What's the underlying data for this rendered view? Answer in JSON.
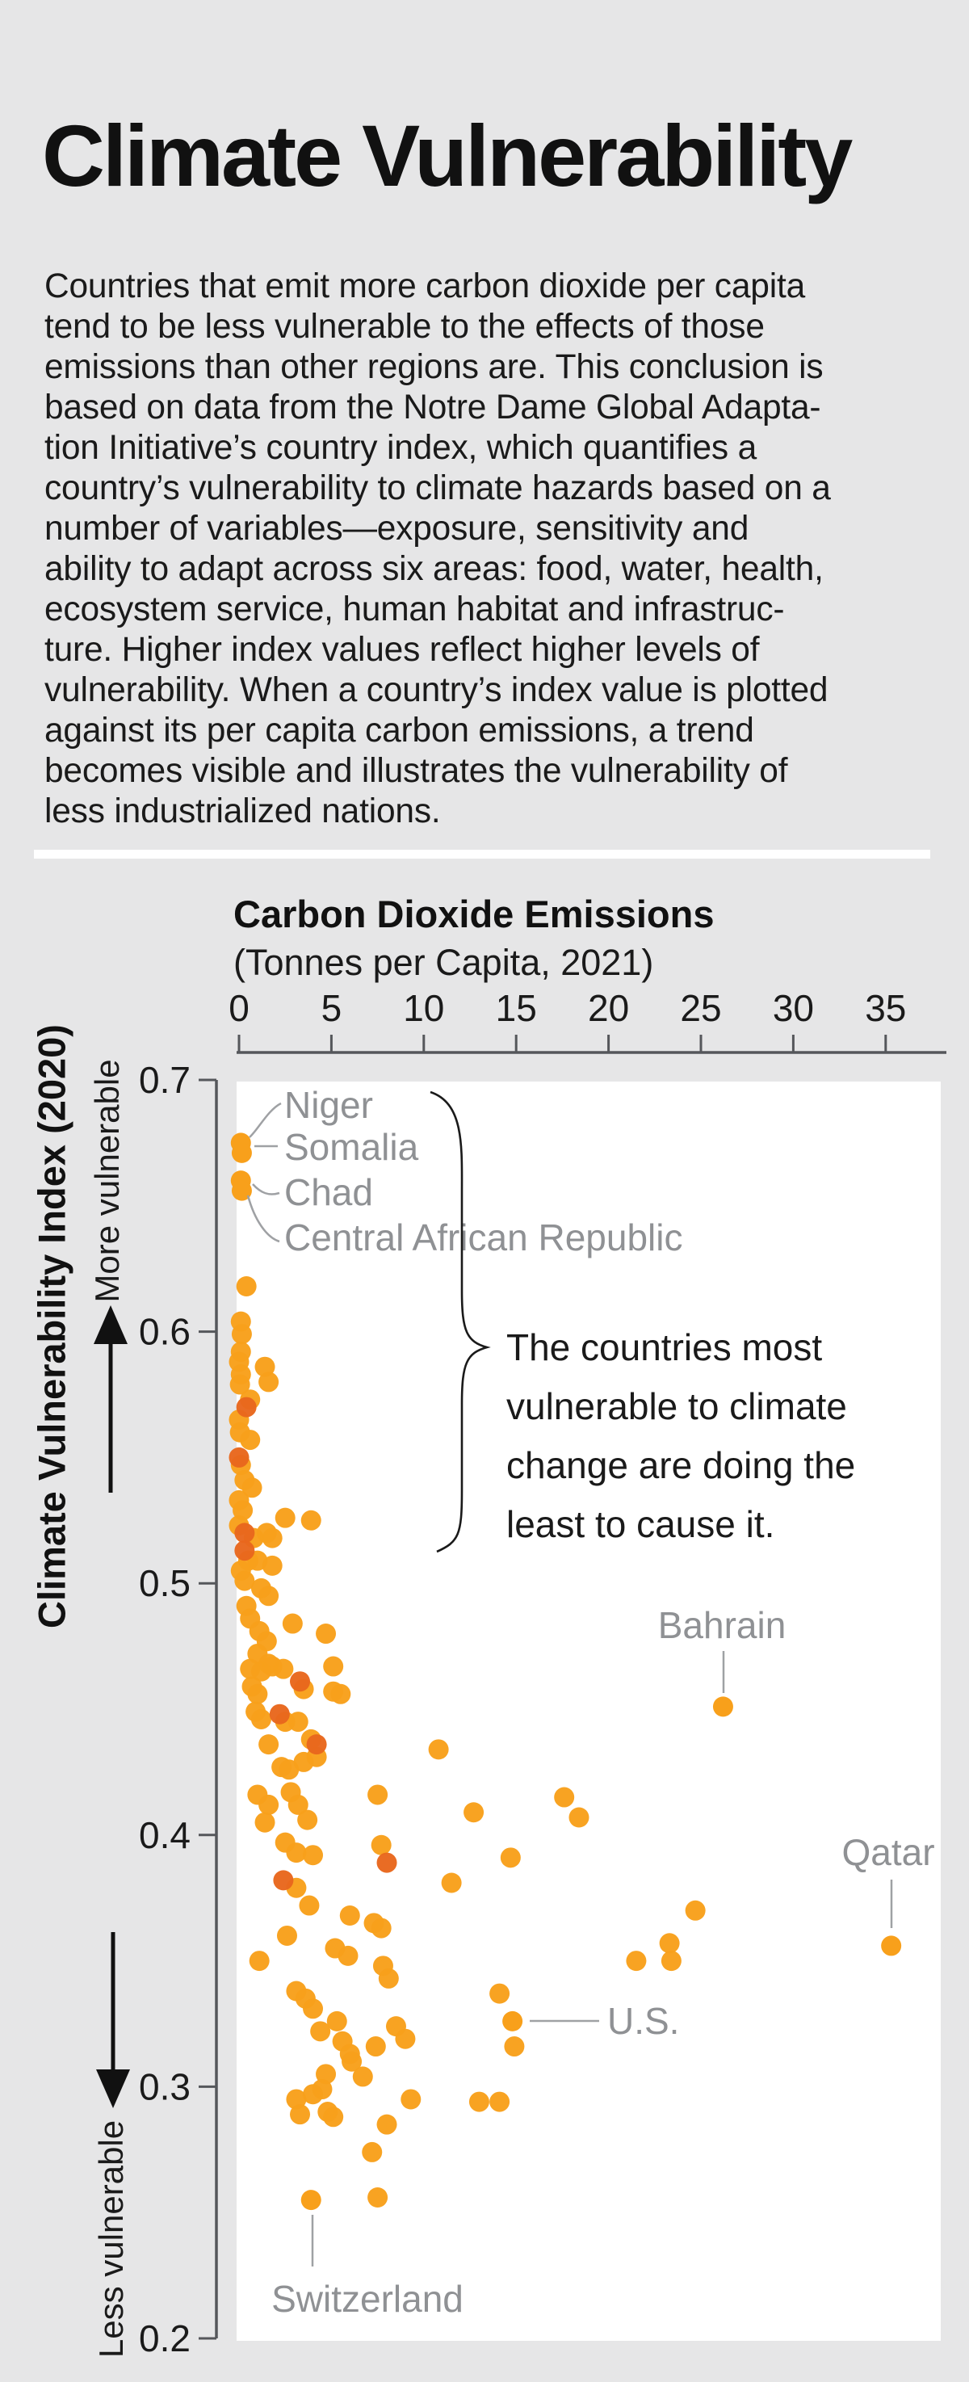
{
  "page": {
    "title": "Climate Vulnerability",
    "intro_lines": [
      "Countries that emit more carbon dioxide per capita",
      "tend to be less vulnerable to the effects of those",
      "emissions than other regions are. This conclusion is",
      "based on data from the Notre Dame Global Adapta-",
      "tion Initiative’s country index, which quantifies a",
      "country’s vulnerability to climate hazards based on a",
      "number of variables—exposure, sensitivity and",
      "ability to adapt across six areas: food, water, health,",
      "ecosystem service, human habitat and infrastruc-",
      "ture. Higher index values reflect higher levels of",
      "vulnerability. When a country’s index value is plotted",
      "against its per capita carbon emissions, a trend",
      "becomes visible and illustrates the vulnerability of",
      "less industrialized nations."
    ]
  },
  "chart": {
    "x_title": "Carbon Dioxide Emissions",
    "x_subtitle": "(Tonnes per Capita, 2021)",
    "y_title": "Climate Vulnerability Index (2020)",
    "y_more": "More vulnerable",
    "y_less": "Less vulnerable"
  },
  "chart_data": {
    "type": "scatter",
    "title": "Climate Vulnerability",
    "xlabel": "Carbon Dioxide Emissions (Tonnes per Capita, 2021)",
    "ylabel": "Climate Vulnerability Index (2020)",
    "x_ticks": [
      0,
      5,
      10,
      15,
      20,
      25,
      30,
      35
    ],
    "y_ticks": [
      0.7,
      0.6,
      0.5,
      0.4,
      0.3,
      0.2
    ],
    "xlim": [
      0,
      38
    ],
    "ylim": [
      0.2,
      0.7
    ],
    "grid": false,
    "legend": "none",
    "annotation": {
      "lines": [
        "The countries most",
        "vulnerable to climate",
        "change are doing the",
        "least to cause it."
      ]
    },
    "labeled_points": [
      {
        "name": "Niger",
        "x": 0.1,
        "y": 0.675
      },
      {
        "name": "Somalia",
        "x": 0.15,
        "y": 0.671
      },
      {
        "name": "Chad",
        "x": 0.1,
        "y": 0.66
      },
      {
        "name": "Central African Republic",
        "x": 0.15,
        "y": 0.656
      },
      {
        "name": "Bahrain",
        "x": 26.2,
        "y": 0.451
      },
      {
        "name": "Qatar",
        "x": 35.3,
        "y": 0.356
      },
      {
        "name": "U.S.",
        "x": 14.8,
        "y": 0.326
      },
      {
        "name": "Switzerland",
        "x": 3.9,
        "y": 0.255
      }
    ],
    "points": [
      [
        0.4,
        0.618
      ],
      [
        0.1,
        0.604
      ],
      [
        0.15,
        0.599
      ],
      [
        0.1,
        0.592
      ],
      [
        0.0,
        0.588
      ],
      [
        0.1,
        0.583
      ],
      [
        1.4,
        0.586
      ],
      [
        1.6,
        0.58
      ],
      [
        0.05,
        0.579
      ],
      [
        0.6,
        0.573
      ],
      [
        0.0,
        0.565
      ],
      [
        0.05,
        0.56
      ],
      [
        0.6,
        0.557
      ],
      [
        0.1,
        0.547
      ],
      [
        0.3,
        0.541
      ],
      [
        0.7,
        0.538
      ],
      [
        0.0,
        0.533
      ],
      [
        0.2,
        0.529
      ],
      [
        0.0,
        0.523
      ],
      [
        0.8,
        0.518
      ],
      [
        2.5,
        0.526
      ],
      [
        3.9,
        0.525
      ],
      [
        1.5,
        0.52
      ],
      [
        1.8,
        0.518
      ],
      [
        0.5,
        0.509
      ],
      [
        0.1,
        0.505
      ],
      [
        0.3,
        0.501
      ],
      [
        1.0,
        0.509
      ],
      [
        1.8,
        0.507
      ],
      [
        1.2,
        0.498
      ],
      [
        1.6,
        0.495
      ],
      [
        0.4,
        0.491
      ],
      [
        0.6,
        0.486
      ],
      [
        1.1,
        0.481
      ],
      [
        1.5,
        0.477
      ],
      [
        1.0,
        0.472
      ],
      [
        1.6,
        0.468
      ],
      [
        2.9,
        0.484
      ],
      [
        4.7,
        0.48
      ],
      [
        5.1,
        0.467
      ],
      [
        0.7,
        0.459
      ],
      [
        1.0,
        0.456
      ],
      [
        0.6,
        0.466
      ],
      [
        1.2,
        0.465
      ],
      [
        1.8,
        0.467
      ],
      [
        2.4,
        0.466
      ],
      [
        3.5,
        0.458
      ],
      [
        5.1,
        0.457
      ],
      [
        5.5,
        0.456
      ],
      [
        0.9,
        0.449
      ],
      [
        1.2,
        0.446
      ],
      [
        2.5,
        0.445
      ],
      [
        3.2,
        0.445
      ],
      [
        3.9,
        0.438
      ],
      [
        1.6,
        0.436
      ],
      [
        2.3,
        0.427
      ],
      [
        2.7,
        0.426
      ],
      [
        3.5,
        0.429
      ],
      [
        4.2,
        0.431
      ],
      [
        10.8,
        0.434
      ],
      [
        1.0,
        0.416
      ],
      [
        1.6,
        0.412
      ],
      [
        2.8,
        0.417
      ],
      [
        3.2,
        0.412
      ],
      [
        3.7,
        0.406
      ],
      [
        1.4,
        0.405
      ],
      [
        7.5,
        0.416
      ],
      [
        17.6,
        0.415
      ],
      [
        18.4,
        0.407
      ],
      [
        12.7,
        0.409
      ],
      [
        2.5,
        0.397
      ],
      [
        3.1,
        0.393
      ],
      [
        4.0,
        0.392
      ],
      [
        7.7,
        0.396
      ],
      [
        14.7,
        0.391
      ],
      [
        11.5,
        0.381
      ],
      [
        3.1,
        0.379
      ],
      [
        3.8,
        0.372
      ],
      [
        6.0,
        0.368
      ],
      [
        7.3,
        0.365
      ],
      [
        7.7,
        0.363
      ],
      [
        5.2,
        0.355
      ],
      [
        5.9,
        0.352
      ],
      [
        2.6,
        0.36
      ],
      [
        1.1,
        0.35
      ],
      [
        24.7,
        0.37
      ],
      [
        23.3,
        0.357
      ],
      [
        23.4,
        0.35
      ],
      [
        21.5,
        0.35
      ],
      [
        7.8,
        0.348
      ],
      [
        8.1,
        0.343
      ],
      [
        3.1,
        0.338
      ],
      [
        3.6,
        0.335
      ],
      [
        4.0,
        0.331
      ],
      [
        14.1,
        0.337
      ],
      [
        4.4,
        0.322
      ],
      [
        5.3,
        0.326
      ],
      [
        5.6,
        0.318
      ],
      [
        7.4,
        0.316
      ],
      [
        8.5,
        0.324
      ],
      [
        9.0,
        0.319
      ],
      [
        6.0,
        0.313
      ],
      [
        6.1,
        0.31
      ],
      [
        4.7,
        0.305
      ],
      [
        6.7,
        0.304
      ],
      [
        3.1,
        0.295
      ],
      [
        4.5,
        0.299
      ],
      [
        4.0,
        0.297
      ],
      [
        9.3,
        0.295
      ],
      [
        13.0,
        0.294
      ],
      [
        14.1,
        0.294
      ],
      [
        3.3,
        0.289
      ],
      [
        4.8,
        0.29
      ],
      [
        5.1,
        0.288
      ],
      [
        8.0,
        0.285
      ],
      [
        7.2,
        0.274
      ],
      [
        14.9,
        0.316
      ],
      [
        7.5,
        0.256
      ]
    ],
    "points_dark": [
      [
        0.4,
        0.57
      ],
      [
        0.0,
        0.55
      ],
      [
        0.3,
        0.52
      ],
      [
        0.3,
        0.513
      ],
      [
        3.3,
        0.461
      ],
      [
        2.2,
        0.448
      ],
      [
        4.2,
        0.436
      ],
      [
        8.0,
        0.389
      ],
      [
        2.4,
        0.382
      ]
    ],
    "colors": {
      "page_bg": "#E6E6E7",
      "plot_bg": "#FFFFFF",
      "dot": "#F8A01B",
      "dot_dark": "#E8671D",
      "country_label": "#8F9194",
      "leader_line": "#9FA1A4",
      "axis": "#55575B",
      "text": "#1A1A1A"
    }
  }
}
